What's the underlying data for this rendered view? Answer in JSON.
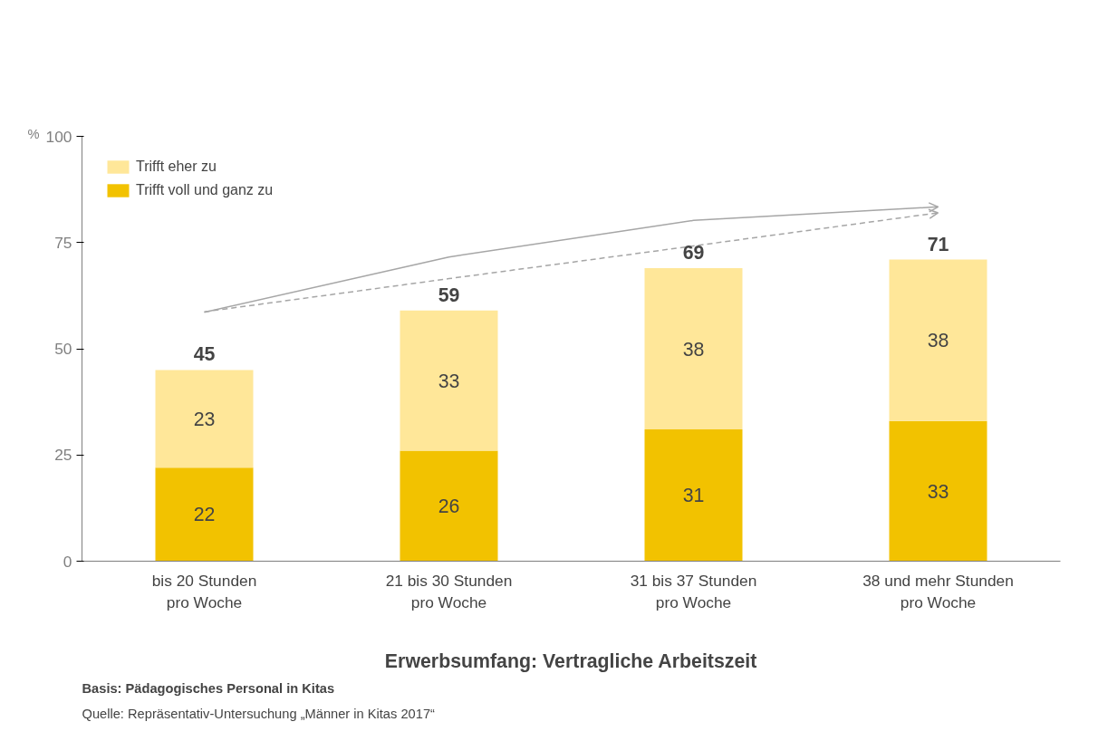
{
  "chart_data": {
    "type": "bar",
    "stacked": true,
    "xlabel": "Erwerbsumfang: Vertragliche Arbeitszeit",
    "ylabel": "%",
    "categories": [
      "bis 20 Stunden\npro Woche",
      "21 bis 30 Stunden\npro Woche",
      "31 bis 37 Stunden\npro Woche",
      "38 und mehr Stunden\npro Woche"
    ],
    "series": [
      {
        "name": "Trifft voll und ganz zu",
        "color": "#f2c200",
        "values": [
          22,
          26,
          31,
          33
        ],
        "value_labels": [
          "22",
          "26",
          "31",
          "33"
        ]
      },
      {
        "name": "Trifft eher zu",
        "color": "#ffe799",
        "values": [
          23,
          33,
          38,
          38
        ],
        "value_labels": [
          "23",
          "33",
          "38",
          "38"
        ]
      },
      {
        "type": "line",
        "color": "#a6a6a6",
        "line_style": "solid",
        "values": [
          58.6,
          71.6,
          80.2,
          83.4
        ]
      },
      {
        "type": "line",
        "color": "#a6a6a6",
        "line_style": "dashed",
        "values": [
          58.7,
          66.5,
          74.2,
          82.0
        ]
      }
    ],
    "totals": [
      "45",
      "59",
      "69",
      "71"
    ],
    "ylim": [
      0,
      100
    ],
    "yticks": [
      0,
      25,
      50,
      75,
      100
    ],
    "grid": false,
    "legend": "top left",
    "annotations": [
      "Basis: Pädagogisches Personal in Kitas",
      "Quelle: Repräsentativ-Untersuchung „Männer in Kitas 2017“"
    ]
  }
}
